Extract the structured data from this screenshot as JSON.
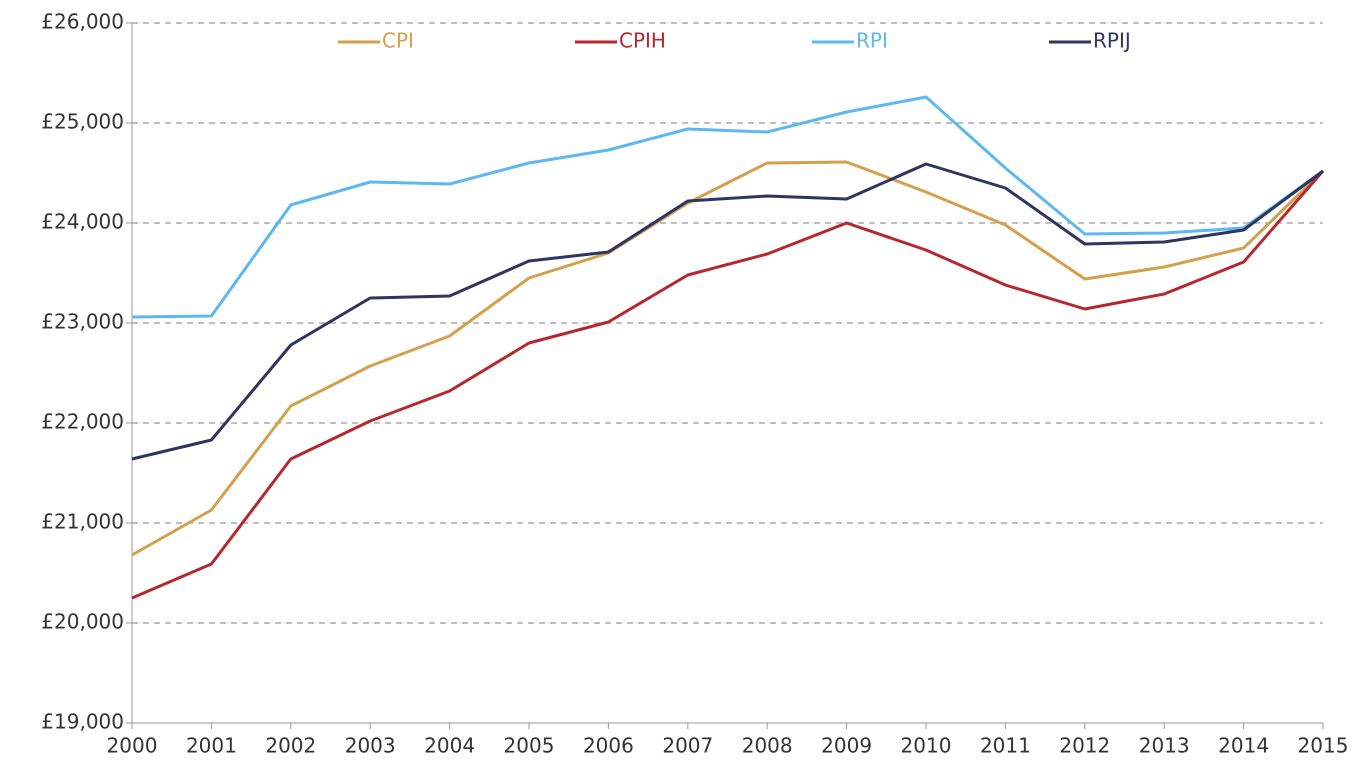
{
  "chart_data": {
    "type": "line",
    "x": [
      2000,
      2001,
      2002,
      2003,
      2004,
      2005,
      2006,
      2007,
      2008,
      2009,
      2010,
      2011,
      2012,
      2013,
      2014,
      2015
    ],
    "xlim": [
      2000,
      2015
    ],
    "ylim": [
      19000,
      26000
    ],
    "yticks": [
      {
        "value": 19000,
        "label": "£19,000"
      },
      {
        "value": 20000,
        "label": "£20,000"
      },
      {
        "value": 21000,
        "label": "£21,000"
      },
      {
        "value": 22000,
        "label": "£22,000"
      },
      {
        "value": 23000,
        "label": "£23,000"
      },
      {
        "value": 24000,
        "label": "£24,000"
      },
      {
        "value": 25000,
        "label": "£25,000"
      },
      {
        "value": 26000,
        "label": "£26,000"
      }
    ],
    "grid": true,
    "legend": "top",
    "series": [
      {
        "name": "CPI",
        "color": "#d4a04c",
        "values": [
          20680,
          21130,
          22170,
          22570,
          22870,
          23450,
          23700,
          24200,
          24600,
          24610,
          24310,
          23980,
          23440,
          23560,
          23750,
          24520
        ]
      },
      {
        "name": "CPIH",
        "color": "#b5282f",
        "values": [
          20250,
          20590,
          21640,
          22020,
          22320,
          22800,
          23010,
          23480,
          23690,
          24000,
          23730,
          23380,
          23140,
          23290,
          23610,
          24520
        ]
      },
      {
        "name": "RPI",
        "color": "#5bb8f0",
        "values": [
          23060,
          23070,
          24180,
          24410,
          24390,
          24600,
          24730,
          24940,
          24910,
          25110,
          25260,
          24550,
          23890,
          23900,
          23950,
          24520
        ]
      },
      {
        "name": "RPIJ",
        "color": "#2e3560",
        "values": [
          21640,
          21830,
          22780,
          23250,
          23270,
          23620,
          23710,
          24220,
          24270,
          24240,
          24590,
          24350,
          23790,
          23810,
          23930,
          24520
        ]
      }
    ]
  }
}
